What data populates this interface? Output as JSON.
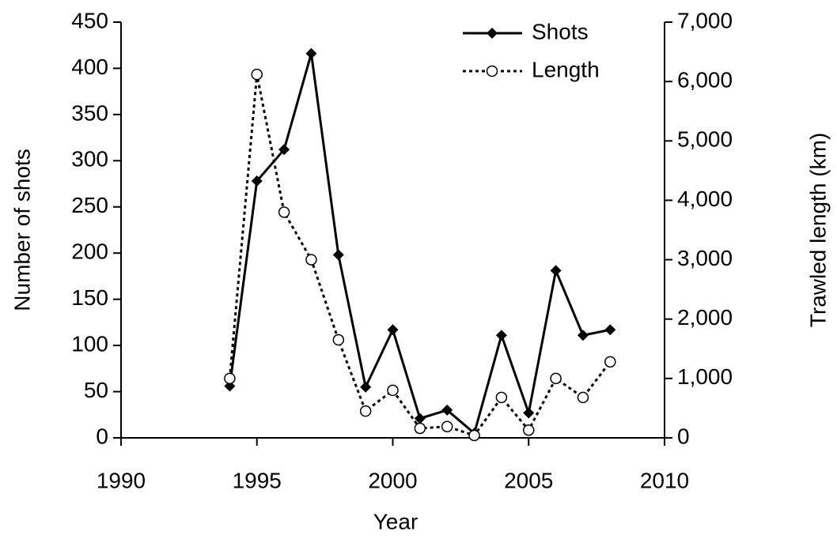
{
  "chart_data": {
    "type": "line",
    "x": [
      1994,
      1995,
      1996,
      1997,
      1998,
      1999,
      2000,
      2001,
      2002,
      2003,
      2004,
      2005,
      2006,
      2007,
      2008
    ],
    "series": [
      {
        "name": "Shots",
        "color": "#000000",
        "line_style": "solid",
        "marker": "diamond",
        "values": [
          56,
          278,
          312,
          416,
          198,
          55,
          117,
          21,
          30,
          5,
          111,
          27,
          181,
          111,
          117
        ]
      },
      {
        "name": "Length",
        "color": "#000000",
        "line_style": "dotted",
        "marker": "circle",
        "axis": "y2",
        "values": [
          1000,
          6120,
          3800,
          3000,
          1650,
          450,
          800,
          160,
          190,
          40,
          680,
          130,
          1000,
          680,
          1280
        ]
      }
    ],
    "x_label": "Year",
    "y_label": "Number of shots",
    "y2_label": "Trawled length (km)",
    "xlim": [
      1990,
      2010
    ],
    "xticks": [
      1990,
      1995,
      2000,
      2005,
      2010
    ],
    "ylim": [
      0,
      450
    ],
    "yticks": [
      0,
      50,
      100,
      150,
      200,
      250,
      300,
      350,
      400,
      450
    ],
    "y2lim": [
      0,
      7000
    ],
    "y2ticks": [
      0,
      {
        "value": 1000,
        "label": "1,000"
      },
      {
        "value": 2000,
        "label": "2,000"
      },
      {
        "value": 3000,
        "label": "3,000"
      },
      {
        "value": 4000,
        "label": "4,000"
      },
      {
        "value": 5000,
        "label": "5,000"
      },
      {
        "value": 6000,
        "label": "6,000"
      },
      {
        "value": 7000,
        "label": "7,000"
      }
    ],
    "legend": "upper-right"
  }
}
